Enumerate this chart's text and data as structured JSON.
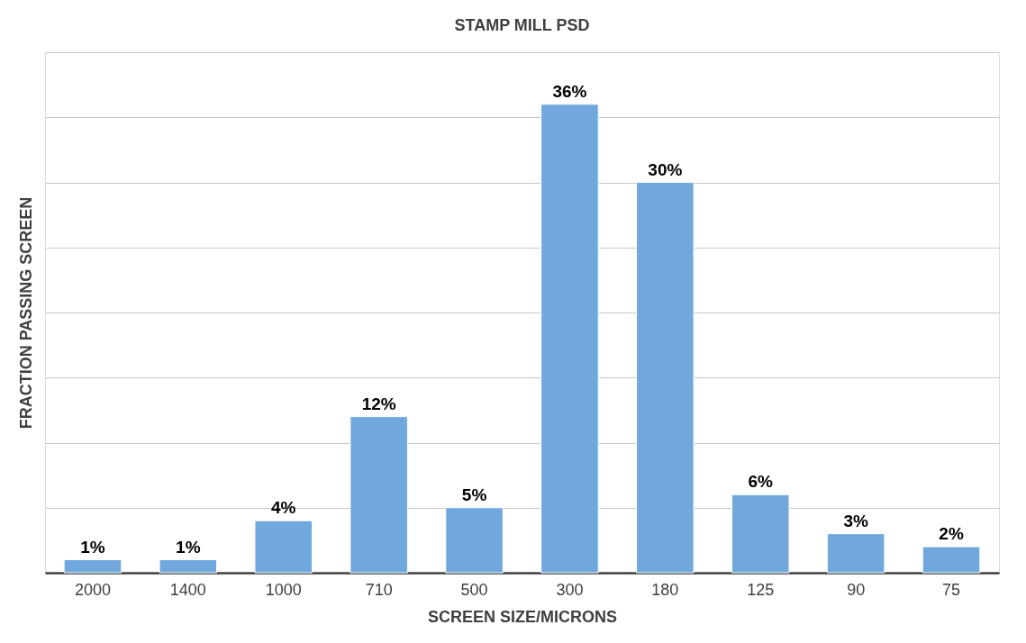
{
  "chart_data": {
    "type": "bar",
    "title": "STAMP MILL PSD",
    "xlabel": "SCREEN SIZE/MICRONS",
    "ylabel": "FRACTION PASSING SCREEN",
    "categories": [
      "2000",
      "1400",
      "1000",
      "710",
      "500",
      "300",
      "180",
      "125",
      "90",
      "75"
    ],
    "values": [
      1,
      1,
      4,
      12,
      5,
      36,
      30,
      6,
      3,
      2
    ],
    "value_labels": [
      "1%",
      "1%",
      "4%",
      "12%",
      "5%",
      "36%",
      "30%",
      "6%",
      "3%",
      "2%"
    ],
    "color": "#70a7dc",
    "ylim": [
      0,
      40
    ],
    "yticks": [
      {
        "value": 0,
        "label": null
      },
      {
        "value": 5,
        "label": null
      },
      {
        "value": 10,
        "label": null
      },
      {
        "value": 15,
        "label": null
      },
      {
        "value": 20,
        "label": null
      },
      {
        "value": 25,
        "label": null
      },
      {
        "value": 30,
        "label": null
      },
      {
        "value": 35,
        "label": null
      },
      {
        "value": 40,
        "label": null
      }
    ],
    "grid": "y",
    "tick_labels": "x"
  }
}
